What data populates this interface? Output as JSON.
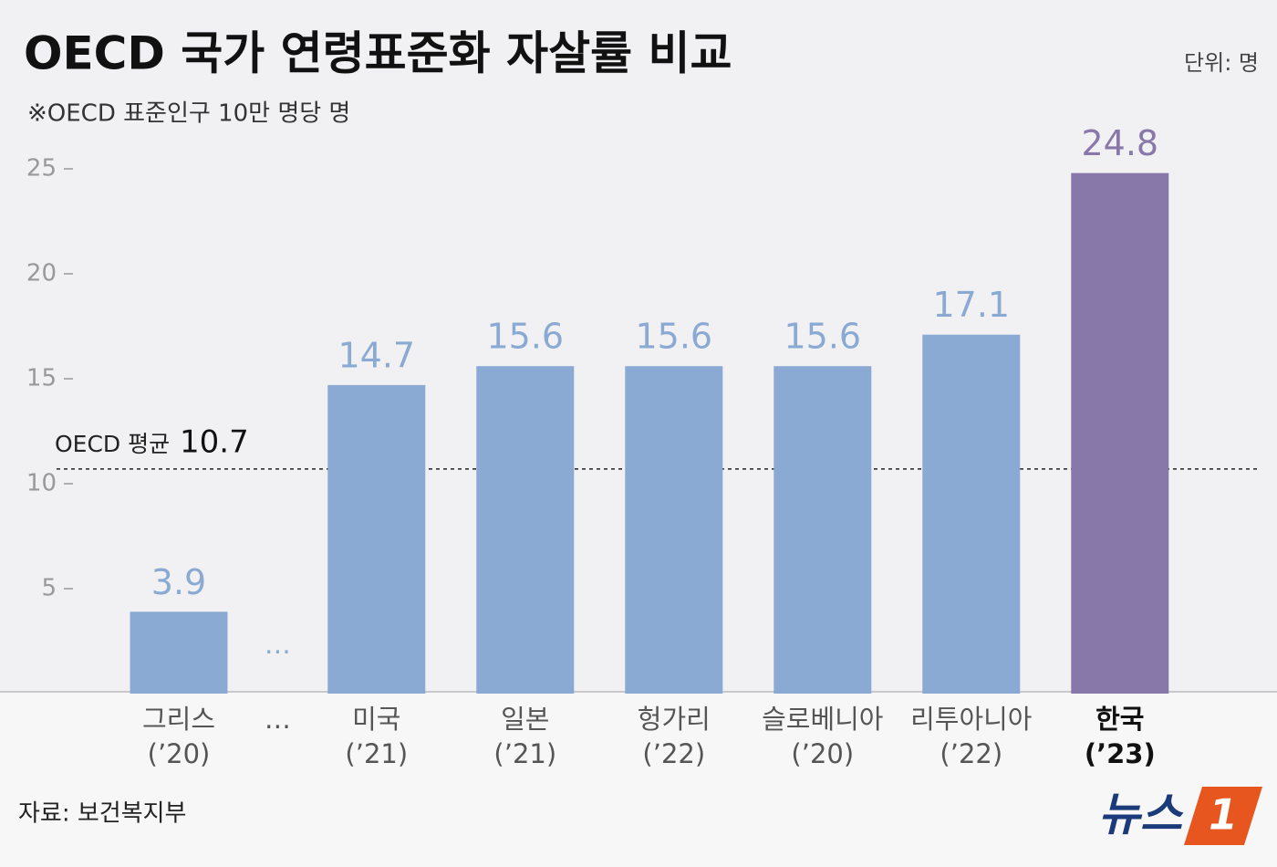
{
  "chart_data": {
    "type": "bar",
    "title": "OECD 국가 연령표준화 자살률 비교",
    "subtitle": "※OECD 표준인구 10만 명당 명",
    "unit": "단위: 명",
    "source": "자료: 보건복지부",
    "logo": {
      "text": "뉴스",
      "badge": "1"
    },
    "categories": [
      "그리스",
      "…",
      "미국",
      "일본",
      "헝가리",
      "슬로베니아",
      "리투아니아",
      "한국"
    ],
    "category_years": [
      "(’20)",
      null,
      "(’21)",
      "(’21)",
      "(’22)",
      "(’20)",
      "(’22)",
      "(’23)"
    ],
    "values": [
      3.9,
      null,
      14.7,
      15.6,
      15.6,
      15.6,
      17.1,
      24.8
    ],
    "colors": [
      "#8aaad3",
      null,
      "#8aaad3",
      "#8aaad3",
      "#8aaad3",
      "#8aaad3",
      "#8aaad3",
      "#8878aa"
    ],
    "highlight": "한국",
    "reference_line": {
      "label": "OECD 평균",
      "value": 10.7
    },
    "ylim": [
      0,
      27
    ],
    "yticks": [
      5,
      10,
      15,
      20,
      25
    ]
  }
}
